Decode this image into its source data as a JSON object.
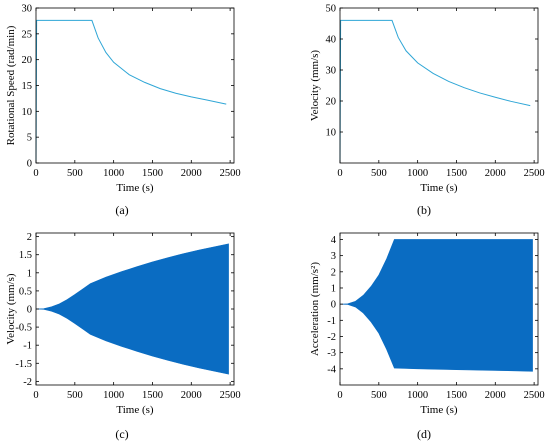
{
  "chart_data": [
    {
      "id": "a",
      "panel_label": "(a)",
      "type": "line",
      "xlabel": "Time (s)",
      "ylabel": "Rotational Speed (rad/min)",
      "xlim": [
        0,
        2550
      ],
      "ylim": [
        0,
        30
      ],
      "xticks": [
        0,
        500,
        1000,
        1500,
        2000,
        2500
      ],
      "yticks": [
        0,
        5,
        10,
        15,
        20,
        25,
        30
      ],
      "xtick_labels": [
        "0",
        "500",
        "1000",
        "1500",
        "2000",
        "2500"
      ],
      "ytick_labels": [
        "0",
        "5",
        "10",
        "15",
        "20",
        "25",
        "30"
      ],
      "grid": false,
      "color": "#2fa6d6",
      "series": [
        {
          "x": [
            0,
            8,
            720,
            800,
            900,
            1000,
            1200,
            1400,
            1600,
            1800,
            2000,
            2200,
            2450
          ],
          "y": [
            0,
            27.6,
            27.6,
            24.2,
            21.4,
            19.5,
            17.1,
            15.6,
            14.4,
            13.5,
            12.8,
            12.2,
            11.4
          ]
        }
      ]
    },
    {
      "id": "b",
      "panel_label": "(b)",
      "type": "line",
      "xlabel": "Time (s)",
      "ylabel": "Velocity (mm/s)",
      "xlim": [
        0,
        2550
      ],
      "ylim": [
        0,
        50
      ],
      "xticks": [
        0,
        500,
        1000,
        1500,
        2000,
        2500
      ],
      "yticks": [
        10,
        20,
        30,
        40,
        50
      ],
      "xtick_labels": [
        "0",
        "500",
        "1000",
        "1500",
        "2000",
        "2500"
      ],
      "ytick_labels": [
        "10",
        "20",
        "30",
        "40",
        "50"
      ],
      "grid": false,
      "color": "#2fa6d6",
      "series": [
        {
          "x": [
            0,
            8,
            670,
            750,
            850,
            1000,
            1200,
            1400,
            1600,
            1800,
            2000,
            2200,
            2450
          ],
          "y": [
            0,
            46,
            46,
            40.5,
            36.2,
            32.3,
            28.9,
            26.3,
            24.3,
            22.6,
            21.2,
            19.9,
            18.5
          ]
        }
      ]
    },
    {
      "id": "c",
      "panel_label": "(c)",
      "type": "area",
      "xlabel": "Time (s)",
      "ylabel": "Velocity (mm/s)",
      "xlim": [
        0,
        2550
      ],
      "ylim": [
        -2.1,
        2.1
      ],
      "xticks": [
        0,
        500,
        1000,
        1500,
        2000,
        2500
      ],
      "yticks": [
        -2,
        -1.5,
        -1,
        -0.5,
        0,
        0.5,
        1,
        1.5,
        2
      ],
      "xtick_labels": [
        "0",
        "500",
        "1000",
        "1500",
        "2000",
        "2500"
      ],
      "ytick_labels": [
        "-2",
        "-1.5",
        "-1",
        "-0.5",
        "0",
        "0.5",
        "1",
        "1.5",
        "2"
      ],
      "grid": false,
      "color": "#0a6cc2",
      "envelope": {
        "x": [
          0,
          100,
          200,
          300,
          400,
          500,
          600,
          700,
          900,
          1100,
          1300,
          1500,
          1700,
          1900,
          2100,
          2300,
          2480
        ],
        "upper": [
          0,
          0.01,
          0.06,
          0.14,
          0.26,
          0.4,
          0.55,
          0.7,
          0.88,
          1.03,
          1.17,
          1.3,
          1.42,
          1.53,
          1.63,
          1.72,
          1.8
        ],
        "lower": [
          0,
          -0.01,
          -0.06,
          -0.14,
          -0.26,
          -0.4,
          -0.55,
          -0.7,
          -0.88,
          -1.03,
          -1.17,
          -1.3,
          -1.42,
          -1.53,
          -1.63,
          -1.72,
          -1.8
        ]
      }
    },
    {
      "id": "d",
      "panel_label": "(d)",
      "type": "area",
      "xlabel": "Time (s)",
      "ylabel": "Acceleration (mm/s²)",
      "xlim": [
        0,
        2550
      ],
      "ylim": [
        -5,
        4.4
      ],
      "xticks": [
        0,
        500,
        1000,
        1500,
        2000,
        2500
      ],
      "yticks": [
        -4,
        -3,
        -2,
        -1,
        0,
        1,
        2,
        3,
        4
      ],
      "xtick_labels": [
        "0",
        "500",
        "1000",
        "1500",
        "2000",
        "2500"
      ],
      "ytick_labels": [
        "-4",
        "-3",
        "-2",
        "-1",
        "0",
        "1",
        "2",
        "3",
        "4"
      ],
      "grid": false,
      "color": "#0a6cc2",
      "envelope": {
        "x": [
          0,
          100,
          200,
          300,
          400,
          500,
          600,
          700,
          1000,
          1500,
          2000,
          2480
        ],
        "upper": [
          0,
          0.02,
          0.18,
          0.55,
          1.1,
          1.8,
          2.8,
          4.0,
          4.0,
          4.0,
          4.0,
          4.0
        ],
        "lower": [
          0,
          -0.02,
          -0.18,
          -0.55,
          -1.1,
          -1.8,
          -2.8,
          -3.95,
          -4.0,
          -4.05,
          -4.1,
          -4.15
        ]
      }
    }
  ]
}
